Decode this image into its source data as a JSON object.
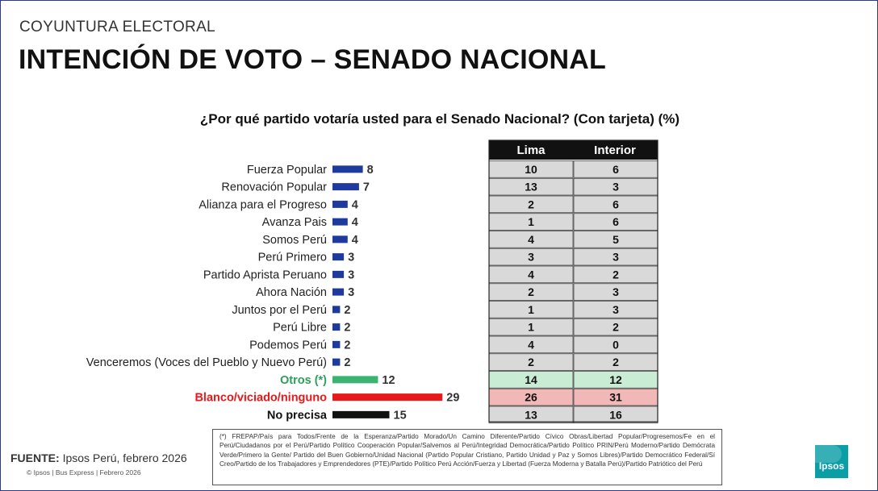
{
  "header": {
    "section": "COYUNTURA ELECTORAL",
    "title": "INTENCIÓN DE VOTO – SENADO NACIONAL"
  },
  "chart_data": {
    "type": "bar",
    "orientation": "horizontal",
    "title": "¿Por qué partido votaría usted para el Senado Nacional? (Con tarjeta) (%)",
    "categories": [
      "Fuerza Popular",
      "Renovación Popular",
      "Alianza para el Progreso",
      "Avanza Pais",
      "Somos Perú",
      "Perú Primero",
      "Partido Aprista Peruano",
      "Ahora Nación",
      "Juntos por el Perú",
      "Perú Libre",
      "Podemos Perú",
      "Venceremos (Voces del Pueblo y Nuevo Perú)",
      "Otros (*)",
      "Blanco/viciado/ninguno",
      "No precisa"
    ],
    "values": [
      8,
      7,
      4,
      4,
      4,
      3,
      3,
      3,
      2,
      2,
      2,
      2,
      12,
      29,
      15
    ],
    "bar_colors": [
      "#1f3a9e",
      "#1f3a9e",
      "#1f3a9e",
      "#1f3a9e",
      "#1f3a9e",
      "#1f3a9e",
      "#1f3a9e",
      "#1f3a9e",
      "#1f3a9e",
      "#1f3a9e",
      "#1f3a9e",
      "#1f3a9e",
      "#3cb371",
      "#e8191b",
      "#111111"
    ],
    "label_colors": [
      "#222222",
      "#222222",
      "#222222",
      "#222222",
      "#222222",
      "#222222",
      "#222222",
      "#222222",
      "#222222",
      "#222222",
      "#222222",
      "#222222",
      "#2e9e5b",
      "#e8191b",
      "#111111"
    ],
    "table": {
      "columns": [
        "Lima",
        "Interior"
      ],
      "rows": [
        [
          10,
          6
        ],
        [
          13,
          3
        ],
        [
          2,
          6
        ],
        [
          1,
          6
        ],
        [
          4,
          5
        ],
        [
          3,
          3
        ],
        [
          4,
          2
        ],
        [
          2,
          3
        ],
        [
          1,
          3
        ],
        [
          1,
          2
        ],
        [
          4,
          0
        ],
        [
          2,
          2
        ],
        [
          14,
          12
        ],
        [
          26,
          31
        ],
        [
          13,
          16
        ]
      ],
      "row_fills": [
        "#d9d9d9",
        "#d9d9d9",
        "#d9d9d9",
        "#d9d9d9",
        "#d9d9d9",
        "#d9d9d9",
        "#d9d9d9",
        "#d9d9d9",
        "#d9d9d9",
        "#d9d9d9",
        "#d9d9d9",
        "#d9d9d9",
        "#c9ecd4",
        "#f2b7b7",
        "#d9d9d9"
      ]
    }
  },
  "footnote": "(*) FREPAP/País para Todos/Frente de la Esperanza/Partido Morado/Un Camino Diferente/Partido Cívico Obras/Libertad Popular/Progresemos/Fe en el Perú/Ciudadanos por el Perú/Partido Político Cooperación Popular/Salvemos al Perú/Integridad Democrática/Partido Político PRIN/Perú Moderno/Partido Demócrata Verde/Primero la Gente/ Partido del Buen Gobierno/Unidad Nacional (Partido Popular Cristiano, Partido Unidad y Paz y Somos Libres)/Partido Democrático Federal/Sí Creo/Partido de los Trabajadores y Emprendedores (PTE)/Partido Político Perú Acción/Fuerza y Libertad (Fuerza Moderna y Batalla Perú)/Partido Patriótico del Perú",
  "source": {
    "label": "FUENTE:",
    "text": "Ipsos Perú, febrero 2026",
    "copyright": "© Ipsos | Bus Express | Febrero 2026"
  },
  "logo": {
    "text": "Ipsos",
    "color": "#0a9ea7"
  }
}
